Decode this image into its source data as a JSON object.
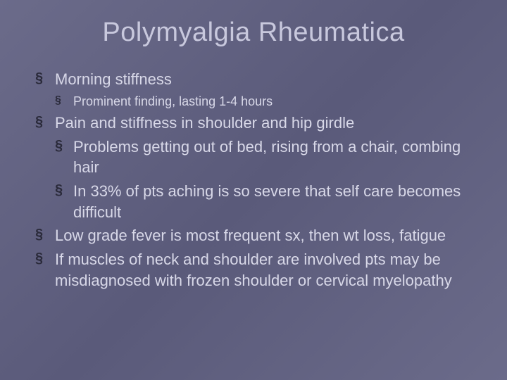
{
  "slide": {
    "title": "Polymyalgia Rheumatica",
    "background_gradient": [
      "#6b6b8a",
      "#5a5a7a",
      "#6b6b8a"
    ],
    "text_color": "#d8d8e8",
    "bullet_color": "#2a2a3a",
    "title_fontsize": 38,
    "level1_fontsize": 22,
    "level2_fontsize": 18,
    "bullets": {
      "b1": "Morning stiffness",
      "b1_1": "Prominent finding, lasting 1-4 hours",
      "b2": "Pain and stiffness in shoulder and hip girdle",
      "b2_1": "Problems getting out of bed, rising from a chair, combing hair",
      "b2_2": "In 33% of pts aching is so severe that self care becomes difficult",
      "b3": "Low grade fever is most frequent sx, then wt loss, fatigue",
      "b4": "If muscles of neck and shoulder are involved pts may be misdiagnosed with frozen shoulder or cervical myelopathy"
    }
  }
}
